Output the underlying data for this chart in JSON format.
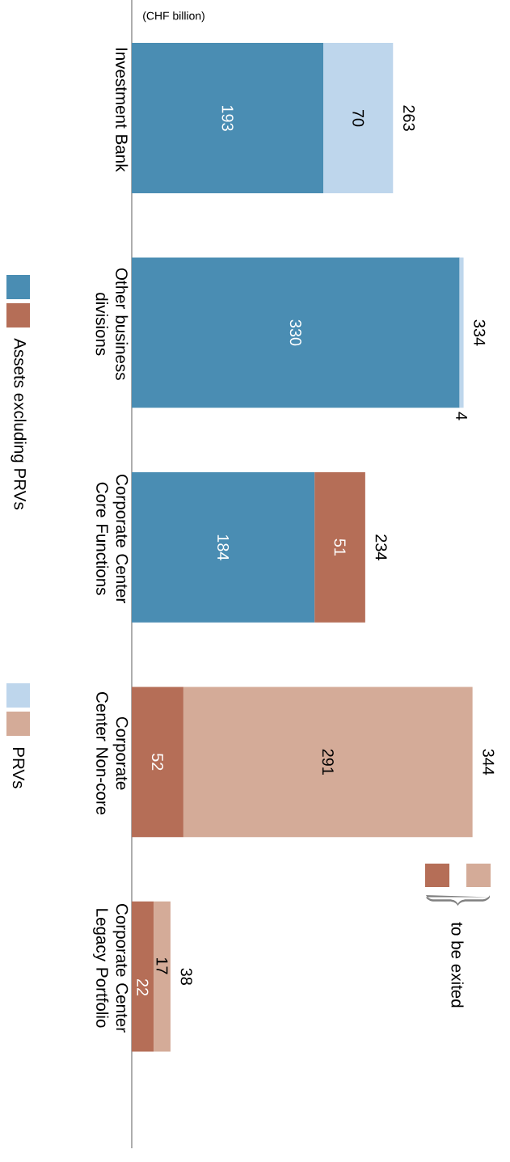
{
  "chart_data": {
    "type": "bar",
    "orientation": "horizontal",
    "stacked": true,
    "categories": [
      "Investment Bank",
      "Other business divisions",
      "Corporate Center Core Functions",
      "Corporate Center Non-core",
      "Corporate Center Legacy Portfolio"
    ],
    "series": [
      {
        "name": "Assets excluding PRVs",
        "values": [
          193,
          330,
          184,
          52,
          22
        ],
        "colors": [
          "#4a8db3",
          "#4a8db3",
          "#4a8db3",
          "#b56e57",
          "#b56e57"
        ]
      },
      {
        "values": [
          null,
          null,
          51,
          null,
          null
        ],
        "color": "#b56e57"
      },
      {
        "name": "PRVs",
        "values": [
          70,
          4,
          null,
          291,
          17
        ],
        "colors": [
          "#bed6ec",
          "#bed6ec",
          null,
          "#d4ab98",
          "#d4ab98"
        ]
      }
    ],
    "data_labels": true,
    "totals": [
      "263",
      "334",
      "234",
      "344",
      "38"
    ],
    "legend": "left",
    "annotations": [
      "(CHF billion)",
      "to be exited"
    ]
  }
}
